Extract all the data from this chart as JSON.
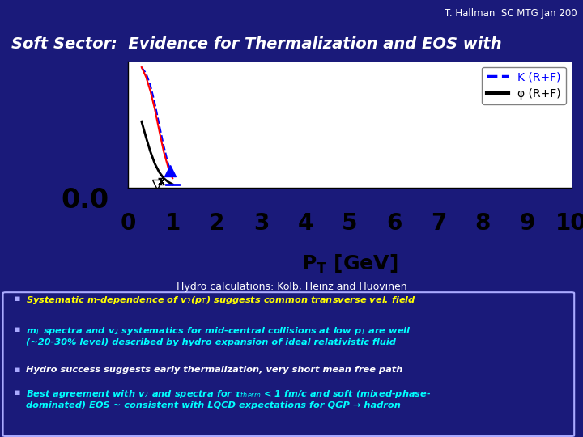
{
  "bg_color": "#1a1a7a",
  "header_text": "T. Hallman  SC MTG Jan 200",
  "header_color": "#ffffff",
  "title_text": "Soft Sector:  Evidence for Thermalization and EOS with",
  "title_color": "#ffffff",
  "plot_bg": "#ffffff",
  "xticks": [
    0,
    1,
    2,
    3,
    4,
    5,
    6,
    7,
    8,
    9,
    10
  ],
  "legend_k_text": "K (R+F)",
  "legend_phi_text": "φ (R+F)",
  "legend_k_color": "#0000ff",
  "legend_phi_color": "#000000",
  "hydro_text": "Hydro calculations: Kolb, Heinz and Huovinen",
  "hydro_color": "#ffffff",
  "bullet1_text": "Systematic m-dependence of v$_2$(p$_T$) suggests common transverse vel. field",
  "bullet1_color": "#ffff00",
  "bullet2_text": "m$_T$ spectra and v$_2$ systematics for mid-central collisions at low p$_T$ are well\n(~20-30% level) described by hydro expansion of ideal relativistic fluid",
  "bullet2_color": "#00ffff",
  "bullet3_text": "Hydro success suggests early thermalization, very short mean free path",
  "bullet3_color": "#ffffff",
  "bullet4_text": "Best agreement with v$_2$ and spectra for τ$_{therm}$ < 1 fm/c and soft (mixed-phase-\ndominated) EOS ~ consistent with LQCD expectations for QGP → hadron",
  "bullet4_color": "#00ffff",
  "bullet_marker_color": "#aaaaff",
  "box_border_color": "#aaaaff"
}
